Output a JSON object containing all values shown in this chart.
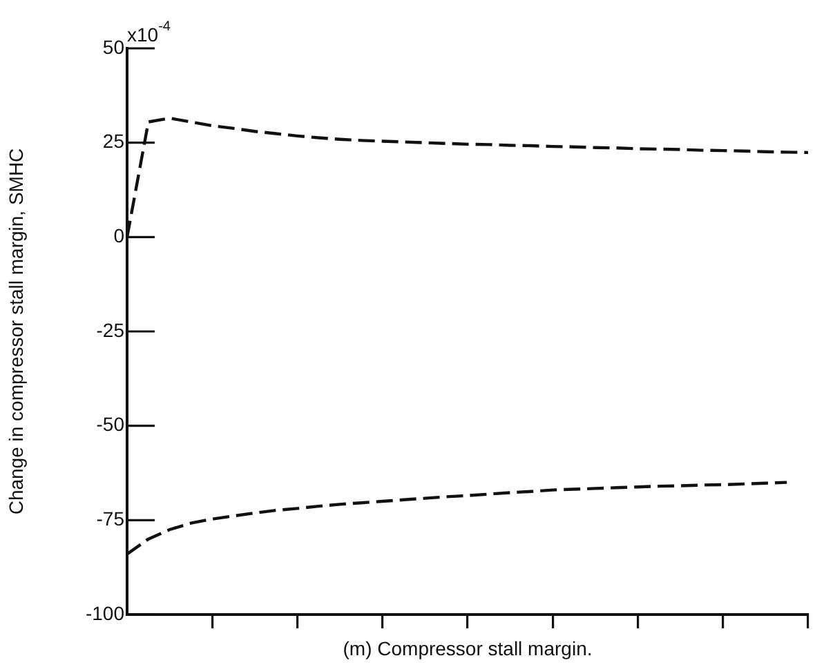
{
  "chart_data": {
    "type": "line",
    "xlabel": "(m) Compressor stall margin.",
    "ylabel": "Change in compressor stall margin, SMHC",
    "categories": [
      null,
      null,
      null,
      null,
      null,
      null,
      null,
      null,
      null,
      null,
      null,
      null,
      null,
      null,
      null,
      null,
      null,
      null,
      null,
      null,
      null,
      null,
      null,
      null,
      null,
      null,
      null,
      null,
      null,
      null,
      null,
      null,
      null
    ],
    "series": [
      {
        "color": "#111111",
        "line_style": "dashed",
        "values": [
          0,
          30.5,
          31.5,
          30.5,
          29.5,
          28.8,
          28,
          27.4,
          26.8,
          26.3,
          25.9,
          25.6,
          25.4,
          25.2,
          25,
          24.8,
          24.6,
          24.5,
          24.3,
          24.2,
          24,
          23.9,
          23.7,
          23.6,
          23.4,
          23.3,
          23.2,
          23,
          22.9,
          22.8,
          22.6,
          22.5,
          22.4
        ]
      },
      {
        "color": "#111111",
        "line_style": "dashed",
        "values": [
          -84,
          -80,
          -77.5,
          -75.8,
          -74.7,
          -73.9,
          -73.1,
          -72.4,
          -71.9,
          -71.3,
          -70.8,
          -70.4,
          -70,
          -69.6,
          -69.2,
          -68.8,
          -68.5,
          -68.1,
          -67.7,
          -67.4,
          -67,
          -66.8,
          -66.6,
          -66.4,
          -66.2,
          -66,
          -65.9,
          -65.7,
          -65.6,
          -65.4,
          -65.2,
          -65,
          null
        ]
      }
    ],
    "ylim": [
      -100,
      50
    ],
    "yticks": [
      50,
      25,
      0,
      -25,
      -50,
      -75,
      -100
    ],
    "annotations": [
      "x10$^{-4}$"
    ],
    "grid": false,
    "legend": false,
    "marker": "none"
  }
}
